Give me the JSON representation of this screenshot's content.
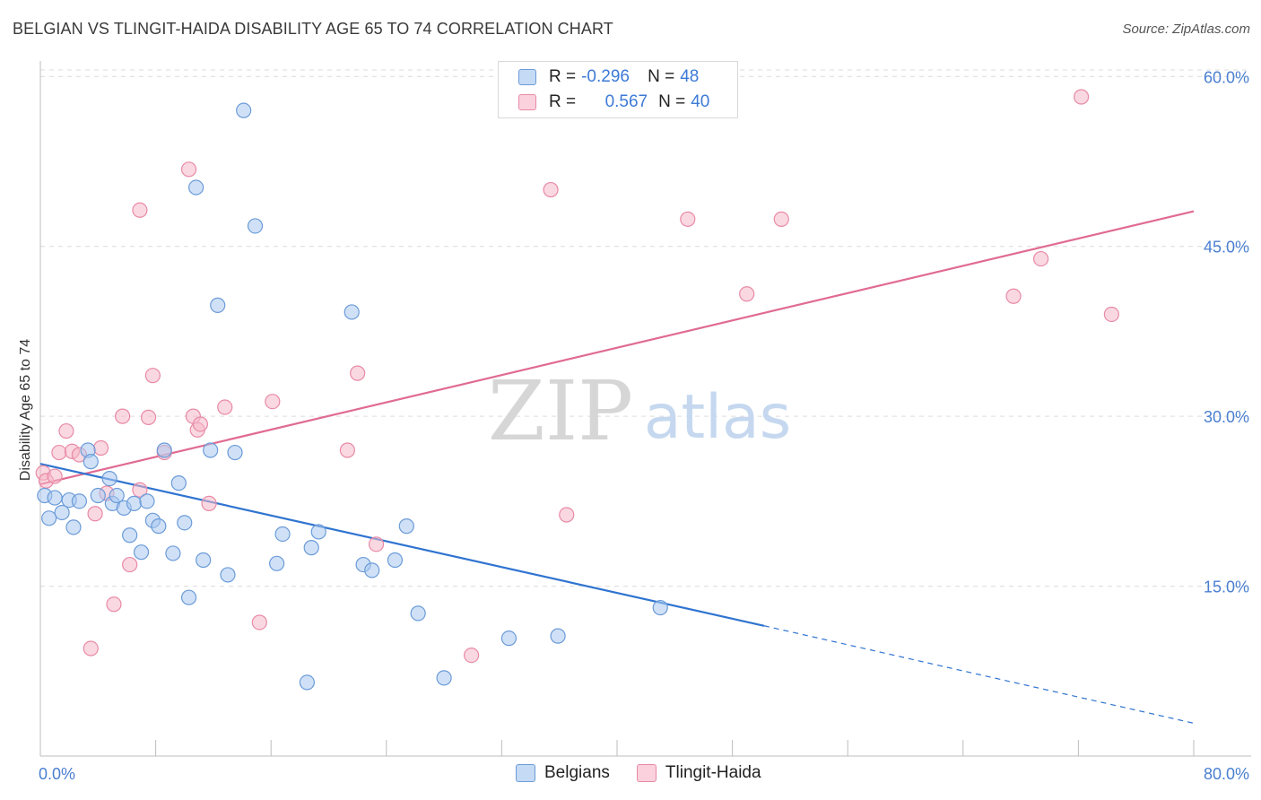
{
  "title": "BELGIAN VS TLINGIT-HAIDA DISABILITY AGE 65 TO 74 CORRELATION CHART",
  "source": "Source: ZipAtlas.com",
  "watermark": {
    "zip": "ZIP",
    "atlas": "atlas"
  },
  "legend": {
    "r_label": "R =",
    "n_label": "N =",
    "rows": [
      {
        "series": "Belgians",
        "r": "-0.296",
        "n": "48",
        "color": "#a9c8f0"
      },
      {
        "series": "Tlingit-Haida",
        "r": "0.567",
        "n": "40",
        "color": "#f5b8c9"
      }
    ]
  },
  "bottom_legend": [
    "Belgians",
    "Tlingit-Haida"
  ],
  "colors": {
    "blue_fill": "#a9c8f0",
    "blue_stroke": "#6b9bd8",
    "blue_line": "#2f74d0",
    "pink_fill": "#f5b8c9",
    "pink_stroke": "#e88aa6",
    "pink_line": "#e06b92",
    "tick_text": "#4a7fd0",
    "grid": "#dcdcdc"
  },
  "chart_data": {
    "type": "scatter",
    "title": "BELGIAN VS TLINGIT-HAIDA DISABILITY AGE 65 TO 74 CORRELATION CHART",
    "xlabel": "",
    "ylabel": "Disability Age 65 to 74",
    "xlim": [
      0,
      80
    ],
    "ylim": [
      0,
      62
    ],
    "x_tick_labels": [
      "0.0%",
      "80.0%"
    ],
    "y_ticks": [
      15,
      30,
      45,
      60
    ],
    "y_tick_labels": [
      "15.0%",
      "30.0%",
      "45.0%",
      "60.0%"
    ],
    "grid": true,
    "series": [
      {
        "name": "Belgians",
        "r": -0.296,
        "n": 48,
        "points": [
          [
            0.3,
            23.0
          ],
          [
            0.6,
            21.0
          ],
          [
            1.0,
            22.8
          ],
          [
            1.5,
            21.5
          ],
          [
            2.0,
            22.6
          ],
          [
            2.3,
            20.2
          ],
          [
            2.7,
            22.5
          ],
          [
            3.3,
            27.0
          ],
          [
            3.5,
            26.0
          ],
          [
            4.0,
            23.0
          ],
          [
            4.8,
            24.5
          ],
          [
            5.0,
            22.3
          ],
          [
            5.3,
            23.0
          ],
          [
            5.8,
            21.9
          ],
          [
            6.2,
            19.5
          ],
          [
            6.5,
            22.3
          ],
          [
            7.0,
            18.0
          ],
          [
            7.4,
            22.5
          ],
          [
            7.8,
            20.8
          ],
          [
            8.2,
            20.3
          ],
          [
            8.6,
            27.0
          ],
          [
            9.2,
            17.9
          ],
          [
            9.6,
            24.1
          ],
          [
            10.0,
            20.6
          ],
          [
            10.3,
            14.0
          ],
          [
            10.8,
            50.2
          ],
          [
            11.3,
            17.3
          ],
          [
            11.8,
            27.0
          ],
          [
            12.3,
            39.8
          ],
          [
            13.0,
            16.0
          ],
          [
            13.5,
            26.8
          ],
          [
            14.1,
            57.0
          ],
          [
            14.9,
            46.8
          ],
          [
            16.4,
            17.0
          ],
          [
            16.8,
            19.6
          ],
          [
            18.5,
            6.5
          ],
          [
            18.8,
            18.4
          ],
          [
            19.3,
            19.8
          ],
          [
            21.6,
            39.2
          ],
          [
            22.4,
            16.9
          ],
          [
            23.0,
            16.4
          ],
          [
            24.6,
            17.3
          ],
          [
            25.4,
            20.3
          ],
          [
            26.2,
            12.6
          ],
          [
            28.0,
            6.9
          ],
          [
            32.5,
            10.4
          ],
          [
            35.9,
            10.6
          ],
          [
            43.0,
            13.1
          ]
        ],
        "trend": {
          "x0": 0,
          "y0": 25.8,
          "x1": 50.2,
          "y1": 11.5
        },
        "trend_dashed": {
          "x0": 50.2,
          "y0": 11.5,
          "x1": 80,
          "y1": 2.9
        }
      },
      {
        "name": "Tlingit-Haida",
        "r": 0.567,
        "n": 40,
        "points": [
          [
            0.2,
            25.0
          ],
          [
            0.4,
            24.3
          ],
          [
            1.0,
            24.7
          ],
          [
            1.3,
            26.8
          ],
          [
            1.8,
            28.7
          ],
          [
            2.2,
            26.9
          ],
          [
            2.7,
            26.6
          ],
          [
            3.5,
            9.5
          ],
          [
            3.8,
            21.4
          ],
          [
            4.2,
            27.2
          ],
          [
            4.6,
            23.2
          ],
          [
            5.1,
            13.4
          ],
          [
            5.7,
            30.0
          ],
          [
            6.2,
            16.9
          ],
          [
            6.9,
            48.2
          ],
          [
            6.9,
            23.5
          ],
          [
            7.5,
            29.9
          ],
          [
            7.8,
            33.6
          ],
          [
            8.6,
            26.8
          ],
          [
            10.3,
            51.8
          ],
          [
            10.6,
            30.0
          ],
          [
            10.9,
            28.8
          ],
          [
            11.1,
            29.3
          ],
          [
            11.7,
            22.3
          ],
          [
            12.8,
            30.8
          ],
          [
            15.2,
            11.8
          ],
          [
            16.1,
            31.3
          ],
          [
            21.3,
            27.0
          ],
          [
            22.0,
            33.8
          ],
          [
            23.3,
            18.7
          ],
          [
            29.9,
            8.9
          ],
          [
            35.4,
            50.0
          ],
          [
            36.5,
            21.3
          ],
          [
            44.9,
            47.4
          ],
          [
            49.0,
            40.8
          ],
          [
            51.4,
            47.4
          ],
          [
            67.5,
            40.6
          ],
          [
            69.4,
            43.9
          ],
          [
            72.2,
            58.2
          ],
          [
            74.3,
            39.0
          ]
        ],
        "trend": {
          "x0": 0,
          "y0": 24.0,
          "x1": 80,
          "y1": 48.1
        }
      }
    ]
  }
}
